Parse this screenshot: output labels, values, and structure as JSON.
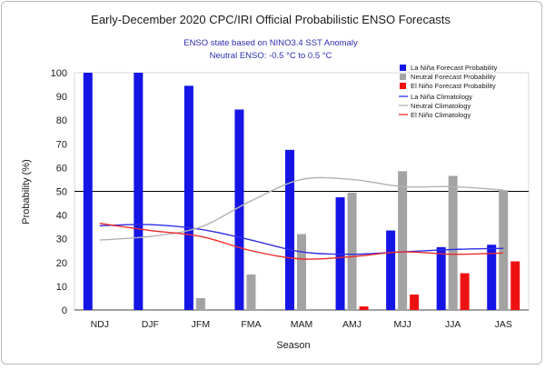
{
  "chart_data": {
    "type": "bar",
    "title": "Early-December 2020 CPC/IRI Official Probabilistic ENSO Forecasts",
    "subtitle_lines": [
      "ENSO state based on NINO3.4 SST Anomaly",
      "Neutral ENSO: -0.5 °C to 0.5 °C"
    ],
    "xlabel": "Season",
    "ylabel": "Probability (%)",
    "ylim": [
      0,
      100
    ],
    "yticks": [
      0,
      10,
      20,
      30,
      40,
      50,
      60,
      70,
      80,
      90,
      100
    ],
    "reference_line": 50,
    "grid": false,
    "legend_position": "top-right",
    "categories": [
      "NDJ",
      "DJF",
      "JFM",
      "FMA",
      "MAM",
      "AMJ",
      "MJJ",
      "JJA",
      "JAS"
    ],
    "series": [
      {
        "name": "La Niña Forecast Probability",
        "color": "#1515e6",
        "values": [
          100,
          100,
          94.5,
          84.5,
          67.5,
          47.5,
          33.5,
          26.5,
          27.5
        ]
      },
      {
        "name": "Neutral Forecast Probability",
        "color": "#a3a3a3",
        "values": [
          0,
          0,
          5,
          15,
          32,
          49.5,
          58.5,
          56.5,
          50.5
        ]
      },
      {
        "name": "El Niño Forecast Probability",
        "color": "#ee1111",
        "values": [
          0,
          0,
          0,
          0,
          0,
          1.5,
          6.5,
          15.5,
          20.5
        ]
      }
    ],
    "climatology": [
      {
        "name": "La Niña Climatology",
        "color": "#2e2ee8",
        "values": [
          35.5,
          36,
          34,
          29.5,
          24.5,
          23.5,
          24.5,
          25.5,
          26
        ]
      },
      {
        "name": "Neutral Climatology",
        "color": "#b2b2b2",
        "values": [
          29.5,
          31,
          35,
          46,
          55,
          55,
          52,
          52,
          50.5
        ]
      },
      {
        "name": "El Niño Climatology",
        "color": "#ee2a2a",
        "values": [
          36.5,
          33.5,
          31,
          25,
          21.5,
          22.5,
          24.5,
          23.5,
          24
        ]
      }
    ]
  }
}
